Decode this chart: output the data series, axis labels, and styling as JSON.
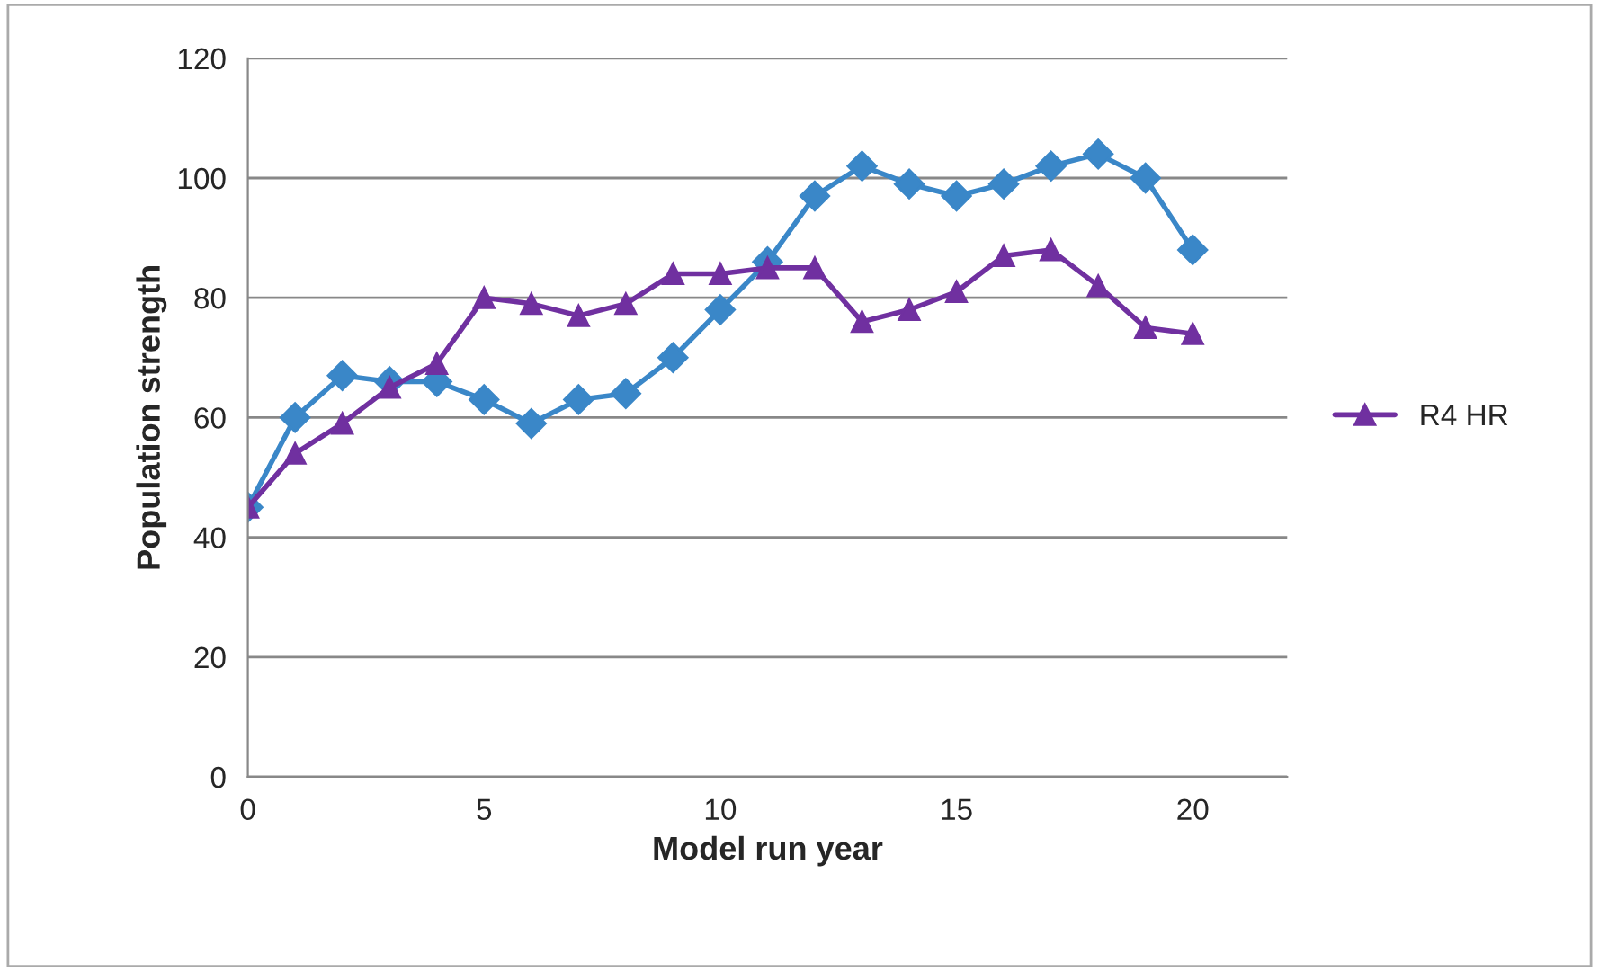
{
  "chart_data": {
    "type": "line",
    "xlabel": "Model run year",
    "ylabel": "Population strength",
    "x": [
      0,
      1,
      2,
      3,
      4,
      5,
      6,
      7,
      8,
      9,
      10,
      11,
      12,
      13,
      14,
      15,
      16,
      17,
      18,
      19,
      20
    ],
    "series": [
      {
        "color": "#3a87c8",
        "marker": "diamond",
        "values": [
          45,
          60,
          67,
          66,
          66,
          63,
          59,
          63,
          64,
          70,
          78,
          86,
          97,
          102,
          99,
          97,
          99,
          102,
          104,
          100,
          88
        ]
      },
      {
        "name": "R4 HR",
        "color": "#7030a0",
        "marker": "triangle",
        "values": [
          45,
          54,
          59,
          65,
          69,
          80,
          79,
          77,
          79,
          84,
          84,
          85,
          85,
          76,
          78,
          81,
          87,
          88,
          82,
          75,
          74
        ]
      }
    ],
    "xlim": [
      0,
      22
    ],
    "xticks": [
      0,
      5,
      10,
      15,
      20
    ],
    "ylim": [
      0,
      120
    ],
    "yticks": [
      0,
      20,
      40,
      60,
      80,
      100,
      120
    ],
    "grid": "y",
    "legend": "right",
    "line_style": "solid"
  }
}
